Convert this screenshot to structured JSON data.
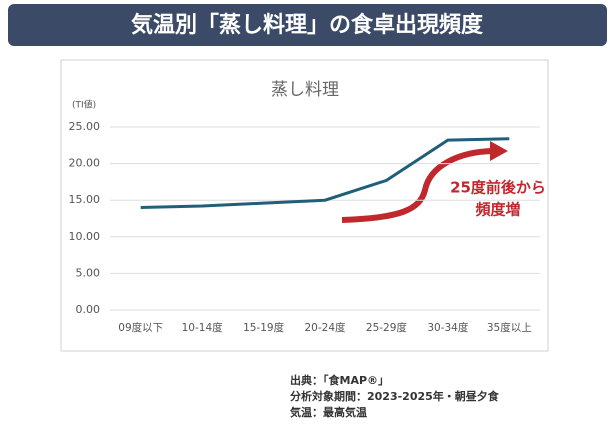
{
  "header": "気温別「蒸し料理」の食卓出現頻度",
  "chart_data": {
    "type": "line",
    "title": "蒸し料理",
    "y_label": "(TI値)",
    "categories": [
      "09度以下",
      "10-14度",
      "15-19度",
      "20-24度",
      "25-29度",
      "30-34度",
      "35度以上"
    ],
    "series": [
      {
        "name": "蒸し料理",
        "color": "#1f5f7a",
        "values": [
          14.0,
          14.2,
          14.6,
          15.0,
          17.7,
          23.2,
          23.4
        ]
      }
    ],
    "ylim": [
      0,
      25
    ],
    "yticks": [
      {
        "value": 0,
        "label": "0.00"
      },
      {
        "value": 5,
        "label": "5.00"
      },
      {
        "value": 10,
        "label": "10.00"
      },
      {
        "value": 15,
        "label": "15.00"
      },
      {
        "value": 20,
        "label": "20.00"
      },
      {
        "value": 25,
        "label": "25.00"
      }
    ],
    "grid": true,
    "annotation": [
      "25度前後から",
      "頻度増"
    ]
  },
  "source": [
    "出典：「食MAP®」",
    "分析対象期間：2023-2025年・朝昼夕食",
    "気温：最高気温"
  ]
}
